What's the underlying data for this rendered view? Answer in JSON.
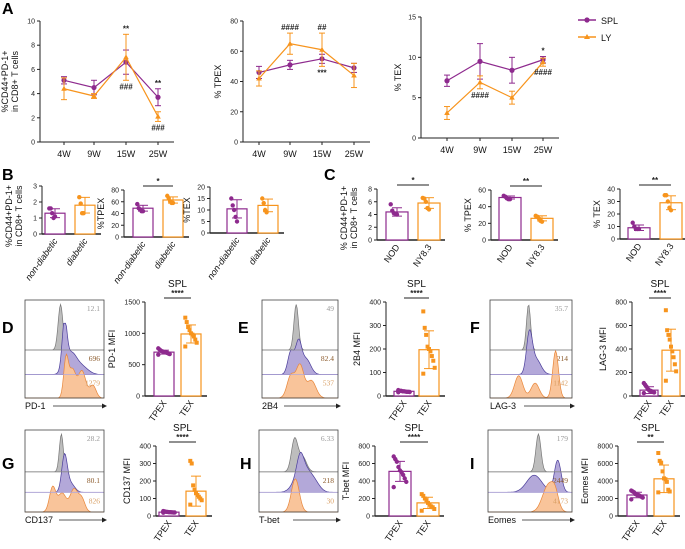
{
  "panel_letters": [
    "A",
    "B",
    "C",
    "D",
    "E",
    "F",
    "G",
    "H",
    "I"
  ],
  "colors": {
    "purple": "#8e2a8e",
    "orange": "#f7941d",
    "hist_gray": "#bdbdbd",
    "hist_purple": "#b3a8d9",
    "hist_orange": "#f9c49a"
  },
  "chart_data": [
    {
      "panel": "A",
      "type": "line",
      "ylabel": [
        "%CD44+PD-1+",
        "in CD8+ T cells"
      ],
      "categories": [
        "4W",
        "9W",
        "15W",
        "25W"
      ],
      "ylim": [
        0,
        10
      ],
      "yticks": [
        "0",
        "2",
        "4",
        "6",
        "8",
        "10"
      ],
      "series": [
        {
          "name": "SPL",
          "color": "#8e2a8e",
          "values": [
            5.1,
            4.5,
            6.6,
            3.7
          ],
          "errors": [
            0.3,
            0.6,
            1.0,
            0.7
          ]
        },
        {
          "name": "LY",
          "color": "#f7941d",
          "values": [
            4.4,
            3.8,
            7.0,
            2.1
          ],
          "errors": [
            0.9,
            0.2,
            1.9,
            0.4
          ]
        }
      ],
      "annotations": [
        {
          "category": "15W",
          "text": "**",
          "position": "above"
        },
        {
          "category": "15W",
          "text": "###",
          "position": "below"
        },
        {
          "category": "25W",
          "text": "**",
          "position": "above"
        },
        {
          "category": "25W",
          "text": "###",
          "position": "below"
        }
      ],
      "legend": "top-right"
    },
    {
      "panel": "A",
      "type": "line",
      "ylabel": [
        "% TPEX"
      ],
      "categories": [
        "4W",
        "9W",
        "15W",
        "25W"
      ],
      "ylim": [
        0,
        80
      ],
      "yticks": [
        "0",
        "20",
        "40",
        "60",
        "80"
      ],
      "series": [
        {
          "color": "#8e2a8e",
          "values": [
            46,
            51,
            55,
            49
          ],
          "errors": [
            4,
            3,
            3,
            3
          ]
        },
        {
          "color": "#f7941d",
          "values": [
            42,
            65,
            61,
            44
          ],
          "errors": [
            5,
            7,
            11,
            8
          ]
        }
      ],
      "annotations": [
        {
          "category": "9W",
          "text": "####",
          "position": "above"
        },
        {
          "category": "15W",
          "text": "##",
          "position": "above"
        },
        {
          "category": "15W",
          "text": "***",
          "position": "below"
        }
      ]
    },
    {
      "panel": "A",
      "type": "line",
      "ylabel": [
        "% TEX"
      ],
      "categories": [
        "4W",
        "9W",
        "15W",
        "25W"
      ],
      "ylim": [
        0,
        15
      ],
      "yticks": [
        "0",
        "5",
        "10",
        "15"
      ],
      "series": [
        {
          "color": "#8e2a8e",
          "values": [
            7.1,
            9.5,
            8.4,
            9.7
          ],
          "errors": [
            0.7,
            2.2,
            1.6,
            0.4
          ]
        },
        {
          "color": "#f7941d",
          "values": [
            3.1,
            6.9,
            5.0,
            9.4
          ],
          "errors": [
            0.8,
            0.8,
            0.8,
            0.5
          ]
        }
      ],
      "annotations": [
        {
          "category": "9W",
          "text": "####",
          "position": "below"
        },
        {
          "category": "25W",
          "text": "*",
          "position": "above"
        },
        {
          "category": "25W",
          "text": "####",
          "position": "below"
        }
      ]
    },
    {
      "panel": "B",
      "type": "bar",
      "ylabel": [
        "%CD44+PD-1+",
        "in CD8+ T cells"
      ],
      "categories": [
        "non-diabetic",
        "diabetic"
      ],
      "ylim": [
        0,
        3
      ],
      "yticks": [
        "0",
        "1",
        "2",
        "3"
      ],
      "values": [
        1.3,
        1.8
      ],
      "points": [
        [
          1.6,
          1.6,
          1.3,
          1.0,
          1.1
        ],
        [
          2.3,
          1.9,
          1.3,
          1.3
        ]
      ],
      "significance": ""
    },
    {
      "panel": "B",
      "type": "bar",
      "ylabel": [
        "%TPEX"
      ],
      "categories": [
        "non-diabetic",
        "diabetic"
      ],
      "ylim": [
        0,
        80
      ],
      "yticks": [
        "0",
        "20",
        "40",
        "60",
        "80"
      ],
      "values": [
        49,
        63
      ],
      "points": [
        [
          56,
          49,
          47,
          44,
          44
        ],
        [
          70,
          66,
          61,
          58,
          58
        ]
      ],
      "significance": "*"
    },
    {
      "panel": "B",
      "type": "bar",
      "ylabel": [
        "%TEX"
      ],
      "categories": [
        "non-diabetic",
        "diabetic"
      ],
      "ylim": [
        0,
        20
      ],
      "yticks": [
        "0",
        "5",
        "10",
        "15",
        "20"
      ],
      "values": [
        10.5,
        12
      ],
      "points": [
        [
          15,
          12,
          10,
          7,
          5
        ],
        [
          15,
          13,
          10,
          9
        ]
      ],
      "significance": ""
    },
    {
      "panel": "C",
      "type": "bar",
      "ylabel": [
        "% CD44+PD-1+",
        "in CD8+ T cells"
      ],
      "categories": [
        "NOD",
        "NY8.3"
      ],
      "ylim": [
        0,
        8
      ],
      "yticks": [
        "0",
        "2",
        "4",
        "6",
        "8"
      ],
      "values": [
        4.4,
        5.8
      ],
      "points": [
        [
          5.6,
          4.6,
          4.2,
          4.1,
          4.0
        ],
        [
          6.6,
          6.5,
          6.0,
          5.0,
          4.8
        ]
      ],
      "significance": "*"
    },
    {
      "panel": "C",
      "type": "bar",
      "ylabel": [
        "% TPEX"
      ],
      "categories": [
        "NOD",
        "NY8.3"
      ],
      "ylim": [
        0,
        60
      ],
      "yticks": [
        "0",
        "20",
        "40",
        "60"
      ],
      "values": [
        51,
        26
      ],
      "points": [
        [
          53,
          52,
          50,
          49,
          49
        ],
        [
          29,
          28,
          26,
          23,
          22
        ]
      ],
      "significance": "**"
    },
    {
      "panel": "C",
      "type": "bar",
      "ylabel": [
        "% TEX"
      ],
      "categories": [
        "NOD",
        "NY8.3"
      ],
      "ylim": [
        0,
        40
      ],
      "yticks": [
        "0",
        "10",
        "20",
        "30",
        "40"
      ],
      "values": [
        9,
        29
      ],
      "points": [
        [
          13,
          10,
          8,
          8,
          8
        ],
        [
          35,
          35,
          30,
          25,
          23
        ]
      ],
      "significance": "**"
    },
    {
      "panel": "D",
      "type": "bar",
      "title": "SPL",
      "ylabel": [
        "PD-1 MFI"
      ],
      "categories": [
        "TPEX",
        "TEX"
      ],
      "ylim": [
        0,
        1500
      ],
      "yticks": [
        "0",
        "500",
        "1000",
        "1500"
      ],
      "values": [
        700,
        990
      ],
      "points": [
        [
          760,
          740,
          720,
          710,
          700,
          700,
          690,
          680,
          670,
          660
        ],
        [
          1250,
          1180,
          1100,
          1050,
          1000,
          980,
          950,
          900,
          850,
          790
        ]
      ],
      "significance": "****",
      "histogram": {
        "marker": "PD-1",
        "values": [
          "12.1",
          "696",
          "1279"
        ]
      }
    },
    {
      "panel": "E",
      "type": "bar",
      "title": "SPL",
      "ylabel": [
        "2B4 MFI"
      ],
      "categories": [
        "TPEX",
        "TEX"
      ],
      "ylim": [
        0,
        400
      ],
      "yticks": [
        "0",
        "100",
        "200",
        "300",
        "400"
      ],
      "values": [
        20,
        197
      ],
      "points": [
        [
          25,
          22,
          22,
          20,
          20,
          19,
          18,
          18,
          17,
          16
        ],
        [
          360,
          290,
          260,
          210,
          200,
          190,
          170,
          150,
          120,
          95
        ]
      ],
      "significance": "****",
      "histogram": {
        "marker": "2B4",
        "values": [
          "49",
          "82.4",
          "537"
        ]
      }
    },
    {
      "panel": "F",
      "type": "bar",
      "title": "SPL",
      "ylabel": [
        "LAG-3 MFI"
      ],
      "categories": [
        "TPEX",
        "TEX"
      ],
      "ylim": [
        0,
        800
      ],
      "yticks": [
        "0",
        "200",
        "400",
        "600",
        "800"
      ],
      "values": [
        50,
        390
      ],
      "points": [
        [
          110,
          95,
          80,
          60,
          50,
          45,
          40,
          35,
          30,
          25
        ],
        [
          730,
          560,
          520,
          480,
          420,
          380,
          330,
          270,
          210,
          130
        ]
      ],
      "significance": "****",
      "histogram": {
        "marker": "LAG-3",
        "values": [
          "35.7",
          "214",
          "1142"
        ]
      }
    },
    {
      "panel": "G",
      "type": "bar",
      "title": "SPL",
      "ylabel": [
        "CD137 MFI"
      ],
      "categories": [
        "TPEX",
        "TEX"
      ],
      "ylim": [
        0,
        400
      ],
      "yticks": [
        "0",
        "100",
        "200",
        "300",
        "400"
      ],
      "values": [
        22,
        142
      ],
      "points": [
        [
          28,
          26,
          24,
          23,
          22,
          22,
          21,
          20,
          20,
          19
        ],
        [
          315,
          300,
          175,
          150,
          130,
          120,
          110,
          100,
          90,
          65
        ]
      ],
      "significance": "****",
      "histogram": {
        "marker": "CD137",
        "values": [
          "28.2",
          "80.1",
          "826"
        ]
      }
    },
    {
      "panel": "H",
      "type": "bar",
      "title": "SPL",
      "ylabel": [
        "T-bet MFI"
      ],
      "categories": [
        "TPEX",
        "TEX"
      ],
      "ylim": [
        0,
        800
      ],
      "yticks": [
        "0",
        "200",
        "400",
        "600",
        "800"
      ],
      "values": [
        510,
        150
      ],
      "points": [
        [
          680,
          650,
          620,
          560,
          520,
          500,
          470,
          430,
          390,
          330
        ],
        [
          250,
          230,
          200,
          180,
          150,
          130,
          110,
          100,
          80,
          60
        ]
      ],
      "significance": "****",
      "histogram": {
        "marker": "T-bet",
        "values": [
          "6.33",
          "218",
          "30"
        ]
      }
    },
    {
      "panel": "I",
      "type": "bar",
      "title": "SPL",
      "ylabel": [
        "Eomes MFI"
      ],
      "categories": [
        "TPEX",
        "TEX"
      ],
      "ylim": [
        0,
        8000
      ],
      "yticks": [
        "0",
        "2000",
        "4000",
        "6000",
        "8000"
      ],
      "values": [
        2400,
        4250
      ],
      "points": [
        [
          2900,
          2800,
          2700,
          2500,
          2400,
          2400,
          2300,
          2200,
          2100,
          1900
        ],
        [
          7200,
          6300,
          6100,
          5100,
          4300,
          4200,
          3900,
          3000,
          2800,
          2700
        ]
      ],
      "significance": "**",
      "histogram": {
        "marker": "Eomes",
        "values": [
          "179",
          "2449",
          "4173"
        ]
      }
    }
  ]
}
